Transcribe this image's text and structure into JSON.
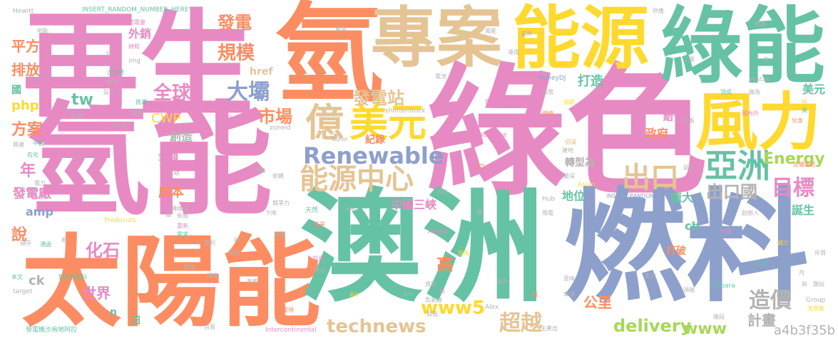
{
  "colors": {
    "pink": "#e78ac3",
    "orange": "#fc8d62",
    "green": "#66c2a5",
    "blue": "#8da0cb",
    "yellow": "#ffd92f",
    "tan": "#e5c494",
    "lime": "#a6d854",
    "gray": "#b3b3b3"
  },
  "words": [
    {
      "text": "再生",
      "color": "pink"
    },
    {
      "text": "氫能",
      "color": "pink"
    },
    {
      "text": "綠色",
      "color": "pink"
    },
    {
      "text": "氫",
      "color": "orange"
    },
    {
      "text": "專案",
      "color": "tan"
    },
    {
      "text": "能源",
      "color": "yellow"
    },
    {
      "text": "綠能",
      "color": "green"
    },
    {
      "text": "太陽能",
      "color": "orange"
    },
    {
      "text": "澳洲",
      "color": "green"
    },
    {
      "text": "燃料",
      "color": "blue"
    },
    {
      "text": "風力",
      "color": "yellow"
    },
    {
      "text": "億",
      "color": "tan"
    },
    {
      "text": "美元",
      "color": "yellow"
    },
    {
      "text": "Renewable",
      "color": "blue"
    },
    {
      "text": "能源中心",
      "color": "tan"
    },
    {
      "text": "亞洲",
      "color": "green"
    },
    {
      "text": "出口",
      "color": "tan"
    },
    {
      "text": "出口國",
      "color": "gray"
    },
    {
      "text": "目標",
      "color": "pink"
    },
    {
      "text": "發電站",
      "color": "tan"
    },
    {
      "text": "大壩",
      "color": "blue"
    },
    {
      "text": "全球",
      "color": "pink"
    },
    {
      "text": "規模",
      "color": "orange"
    },
    {
      "text": "發電",
      "color": "orange"
    },
    {
      "text": "市場",
      "color": "orange"
    },
    {
      "text": "Energy",
      "color": "lime"
    },
    {
      "text": "technews",
      "color": "tan"
    },
    {
      "text": "www5",
      "color": "yellow"
    },
    {
      "text": "超越",
      "color": "tan"
    },
    {
      "text": "delivery",
      "color": "lime"
    },
    {
      "text": "www",
      "color": "lime"
    },
    {
      "text": "造價",
      "color": "gray"
    },
    {
      "text": "計畫",
      "color": "gray"
    },
    {
      "text": "a4b3f35b",
      "color": "gray"
    },
    {
      "text": "平方",
      "color": "orange"
    },
    {
      "text": "排放",
      "color": "orange"
    },
    {
      "text": "php",
      "color": "yellow"
    },
    {
      "text": "方案",
      "color": "orange"
    },
    {
      "text": "年",
      "color": "pink"
    },
    {
      "text": "發電廠",
      "color": "pink"
    },
    {
      "text": "amp",
      "color": "blue"
    },
    {
      "text": "說",
      "color": "orange"
    },
    {
      "text": "化石",
      "color": "pink"
    },
    {
      "text": "世界",
      "color": "pink"
    },
    {
      "text": "tw",
      "color": "green"
    },
    {
      "text": "CWP",
      "color": "yellow"
    },
    {
      "text": "高",
      "color": "orange"
    },
    {
      "text": "公里",
      "color": "orange"
    },
    {
      "text": "打造",
      "color": "green"
    },
    {
      "text": "成本",
      "color": "orange"
    },
    {
      "text": "金額",
      "color": "pink"
    },
    {
      "text": "創造",
      "color": "gray"
    },
    {
      "text": "政府",
      "color": "orange"
    },
    {
      "text": "地位",
      "color": "green"
    },
    {
      "text": "轉型為",
      "color": "gray"
    },
    {
      "text": "龐大",
      "color": "green"
    },
    {
      "text": "中國三峽",
      "color": "pink"
    },
    {
      "text": "誕生",
      "color": "green"
    },
    {
      "text": "美元",
      "color": "green"
    },
    {
      "text": "給予",
      "color": "pink"
    },
    {
      "text": "cb",
      "color": "green"
    },
    {
      "text": "打破",
      "color": "orange"
    },
    {
      "text": "ck",
      "color": "gray"
    },
    {
      "text": "n",
      "color": "green"
    },
    {
      "text": "日",
      "color": "green"
    },
    {
      "text": "href",
      "color": "tan"
    },
    {
      "text": "外銷",
      "color": "pink"
    },
    {
      "text": "國",
      "color": "green"
    },
    {
      "text": "紀錄",
      "color": "orange"
    },
    {
      "text": "Hewitt",
      "color": "gray"
    },
    {
      "text": "INSERT_RANDOM_NUMBER_HERE'",
      "color": "green"
    },
    {
      "text": "shutterstock",
      "color": "gray"
    },
    {
      "text": "MoneyDJ",
      "color": "blue"
    },
    {
      "text": "INSERT_RANDOM",
      "color": "blue"
    },
    {
      "text": "Vestas",
      "color": "gray"
    },
    {
      "text": "Macquarie",
      "color": "pink"
    },
    {
      "text": "Taylor",
      "color": "gray"
    },
    {
      "text": "Angus",
      "color": "pink"
    },
    {
      "text": "Intercontinental",
      "color": "pink"
    },
    {
      "text": "Pilbara",
      "color": "green"
    },
    {
      "text": "Group",
      "color": "gray"
    },
    {
      "text": "Hub",
      "color": "gray"
    },
    {
      "text": "Asian",
      "color": "yellow"
    },
    {
      "text": "Producuts",
      "color": "yellow"
    },
    {
      "text": "Alex",
      "color": "gray"
    },
    {
      "text": "target",
      "color": "gray"
    },
    {
      "text": "_blank'",
      "color": "gray"
    },
    {
      "text": "zoneid",
      "color": "gray"
    },
    {
      "text": "img",
      "color": "gray"
    },
    {
      "text": "aw",
      "color": "gray"
    },
    {
      "text": "src",
      "color": "gray"
    },
    {
      "text": "Air",
      "color": "yellow"
    },
    {
      "text": "a",
      "color": "gray"
    },
    {
      "text": "地點",
      "color": "gray"
    },
    {
      "text": "發電量",
      "color": "pink"
    },
    {
      "text": "總和",
      "color": "pink"
    },
    {
      "text": "沙烏地",
      "color": "green"
    },
    {
      "text": "發電機沙烏地阿拉",
      "color": "green"
    },
    {
      "text": "對化石燃料",
      "color": "green"
    },
    {
      "text": "電力",
      "color": "gray"
    },
    {
      "text": "天然氣",
      "color": "yellow"
    },
    {
      "text": "天然",
      "color": "green"
    },
    {
      "text": "國內外",
      "color": "pink"
    },
    {
      "text": "皮爾布拉",
      "color": "orange"
    },
    {
      "text": "倡議",
      "color": "tan"
    },
    {
      "text": "價格",
      "color": "pink"
    },
    {
      "text": "燃燒",
      "color": "orange"
    },
    {
      "text": "協助",
      "color": "yellow"
    },
    {
      "text": "廣闊",
      "color": "gray"
    },
    {
      "text": "面板",
      "color": "gray"
    },
    {
      "text": "風能",
      "color": "gray"
    },
    {
      "text": "業界",
      "color": "gray"
    },
    {
      "text": "包括",
      "color": "green"
    },
    {
      "text": "地圖",
      "color": "gray"
    },
    {
      "text": "供應",
      "color": "gray"
    },
    {
      "text": "次",
      "color": "gray"
    },
    {
      "text": "工業",
      "color": "gray"
    },
    {
      "text": "做為",
      "color": "gray"
    },
    {
      "text": "頂成",
      "color": "green"
    },
    {
      "text": "建地",
      "color": "gray"
    },
    {
      "text": "重新",
      "color": "pink"
    },
    {
      "text": "需求",
      "color": "green"
    },
    {
      "text": "運送",
      "color": "gray"
    },
    {
      "text": "新聞",
      "color": "gray"
    },
    {
      "text": "部長",
      "color": "pink"
    },
    {
      "text": "勢必",
      "color": "gray"
    },
    {
      "text": "資助",
      "color": "gray"
    },
    {
      "text": "製造",
      "color": "gray"
    },
    {
      "text": "生產出",
      "color": "gray"
    },
    {
      "text": "車領",
      "color": "gray"
    },
    {
      "text": "意味",
      "color": "gray"
    },
    {
      "text": "領袖",
      "color": "gray"
    },
    {
      "text": "快速",
      "color": "green"
    },
    {
      "text": "類似",
      "color": "gray"
    },
    {
      "text": "斥資",
      "color": "gray"
    },
    {
      "text": "階段",
      "color": "gray"
    },
    {
      "text": "減少",
      "color": "yellow"
    },
    {
      "text": "光電",
      "color": "pink"
    },
    {
      "text": "用電",
      "color": "gray"
    },
    {
      "text": "創辦人",
      "color": "gray"
    },
    {
      "text": "延伸",
      "color": "gray"
    },
    {
      "text": "最深",
      "color": "gray"
    },
    {
      "text": "水力",
      "color": "orange"
    },
    {
      "text": "液化",
      "color": "gray"
    },
    {
      "text": "依賴",
      "color": "gray"
    },
    {
      "text": "競爭力",
      "color": "gray"
    },
    {
      "text": "下降",
      "color": "gray"
    },
    {
      "text": "獲利",
      "color": "gray"
    },
    {
      "text": "授權",
      "color": "gray"
    },
    {
      "text": "轉載",
      "color": "gray"
    },
    {
      "text": "本文",
      "color": "green"
    },
    {
      "text": "儲存",
      "color": "gray"
    },
    {
      "text": "興建",
      "color": "gray"
    },
    {
      "text": "石化",
      "color": "green"
    },
    {
      "text": "中國",
      "color": "green"
    },
    {
      "text": "溫室",
      "color": "gray"
    },
    {
      "text": "公斤",
      "color": "pink"
    },
    {
      "text": "閱讀",
      "color": "gray"
    },
    {
      "text": "設立",
      "color": "gray"
    },
    {
      "text": "挑選",
      "color": "green"
    },
    {
      "text": "架設",
      "color": "gray"
    },
    {
      "text": "電池",
      "color": "gray"
    },
    {
      "text": "風電",
      "color": "gray"
    },
    {
      "text": "通過",
      "color": "green"
    },
    {
      "text": "首面",
      "color": "gray"
    },
    {
      "text": "容易",
      "color": "yellow"
    },
    {
      "text": "重視",
      "color": "orange"
    },
    {
      "text": "氫氣廠",
      "color": "gray"
    },
    {
      "text": "轉換成",
      "color": "gray"
    },
    {
      "text": "乾旱",
      "color": "orange"
    },
    {
      "text": "化身",
      "color": "orange"
    },
    {
      "text": "頁",
      "color": "green"
    },
    {
      "text": "時",
      "color": "yellow"
    },
    {
      "text": "相",
      "color": "gray"
    },
    {
      "text": "熱",
      "color": "gray"
    },
    {
      "text": "前",
      "color": "gray"
    },
    {
      "text": "擬",
      "color": "gray"
    },
    {
      "text": "分",
      "color": "gray"
    },
    {
      "text": "月",
      "color": "gray"
    },
    {
      "text": "料",
      "color": "pink"
    },
    {
      "text": "越",
      "color": "orange"
    },
    {
      "text": "三峽",
      "color": "gray"
    },
    {
      "text": "數億",
      "color": "gray"
    },
    {
      "text": "氣能",
      "color": "gray"
    },
    {
      "text": "專案",
      "color": "gray"
    },
    {
      "text": "達成",
      "color": "gray"
    },
    {
      "text": "海外",
      "color": "gray"
    },
    {
      "text": "能力",
      "color": "gray"
    },
    {
      "text": "化產",
      "color": "gray"
    }
  ]
}
